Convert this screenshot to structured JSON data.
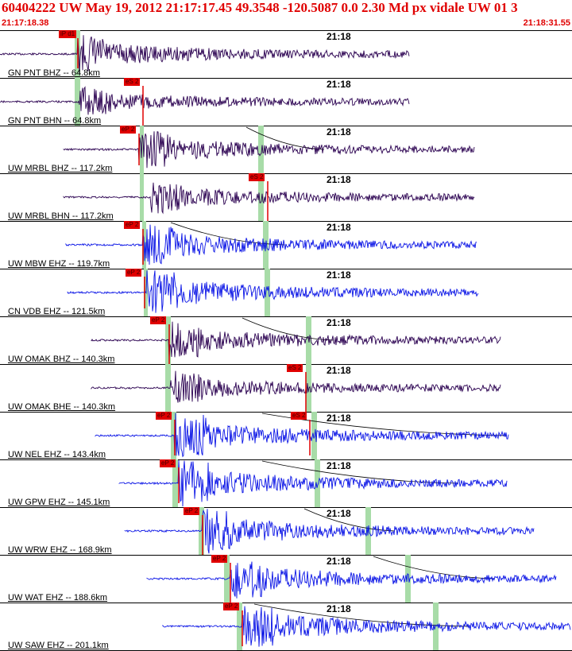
{
  "header": {
    "title": "60404222 UW May 19, 2012 21:17:17.45   49.3548 -120.5087  0.0 2.30 Md px vidale UW 01   3",
    "start_time": "21:17:18.38",
    "end_time": "21:18:31.55"
  },
  "minute_mark": "21:18",
  "colors": {
    "velocity": "#2a0050",
    "broadband": "#0a14e6",
    "pick": "#e00000",
    "window": "#a8dca8"
  },
  "traces": [
    {
      "label": "GN PNT BHZ -- 64.8km",
      "color": "velocity",
      "picks": [
        "iP d1"
      ],
      "minute_mark": "21:18"
    },
    {
      "label": "GN PNT BHN -- 64.8km",
      "color": "velocity",
      "picks": [
        "eS 2"
      ],
      "minute_mark": "21:18"
    },
    {
      "label": "UW MRBL BHZ -- 117.2km",
      "color": "velocity",
      "picks": [
        "eP 2"
      ],
      "minute_mark": "21:18"
    },
    {
      "label": "UW MRBL BHN -- 117.2km",
      "color": "velocity",
      "picks": [
        "eS 2"
      ],
      "minute_mark": "21:18"
    },
    {
      "label": "UW MBW EHZ -- 119.7km",
      "color": "broadband",
      "picks": [
        "eP 2"
      ],
      "minute_mark": "21:18"
    },
    {
      "label": "CN VDB EHZ -- 121.5km",
      "color": "broadband",
      "picks": [
        "eP 2"
      ],
      "minute_mark": "21:18"
    },
    {
      "label": "UW OMAK BHZ -- 140.3km",
      "color": "velocity",
      "picks": [
        "eP 2"
      ],
      "minute_mark": "21:18"
    },
    {
      "label": "UW OMAK BHE -- 140.3km",
      "color": "velocity",
      "picks": [
        "eS 2"
      ],
      "minute_mark": "21:18"
    },
    {
      "label": "UW NEL EHZ -- 143.4km",
      "color": "broadband",
      "picks": [
        "eP 2",
        "eS 2"
      ],
      "minute_mark": "21:18"
    },
    {
      "label": "UW GPW EHZ -- 145.1km",
      "color": "broadband",
      "picks": [
        "eP 2"
      ],
      "minute_mark": "21:18"
    },
    {
      "label": "UW WRW EHZ -- 168.9km",
      "color": "broadband",
      "picks": [
        "eP 2"
      ],
      "minute_mark": "21:18"
    },
    {
      "label": "UW WAT EHZ -- 188.6km",
      "color": "broadband",
      "picks": [
        "eP 2"
      ],
      "minute_mark": "21:18"
    },
    {
      "label": "UW SAW EHZ -- 201.1km",
      "color": "broadband",
      "picks": [
        "eP 2"
      ],
      "minute_mark": "21:18"
    }
  ]
}
